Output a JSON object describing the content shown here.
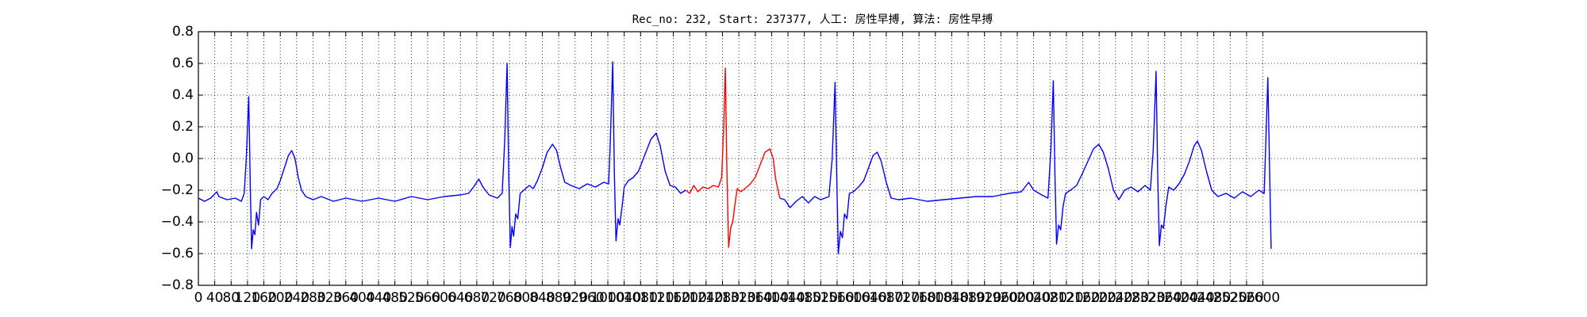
{
  "chart_data": {
    "type": "line",
    "title": "Rec_no: 232, Start: 237377, 人工: 房性早搏, 算法: 房性早搏",
    "xlim": [
      0,
      3000
    ],
    "xticks": [
      0,
      40,
      80,
      120,
      160,
      200,
      240,
      280,
      320,
      360,
      400,
      440,
      480,
      520,
      560,
      600,
      640,
      680,
      720,
      760,
      800,
      840,
      880,
      920,
      960,
      1000,
      1040,
      1080,
      1120,
      1160,
      1200,
      1240,
      1280,
      1320,
      1360,
      1400,
      1440,
      1480,
      1520,
      1560,
      1600,
      1640,
      1680,
      1720,
      1760,
      1800,
      1840,
      1880,
      1920,
      1960,
      2000,
      2040,
      2080,
      2120,
      2160,
      2200,
      2240,
      2280,
      2320,
      2360,
      2400,
      2440,
      2480,
      2520,
      2560,
      2600
    ],
    "ylim": [
      -0.8,
      0.8
    ],
    "yticks": [
      {
        "value": -0.8,
        "label": "−0.8"
      },
      {
        "value": -0.6,
        "label": "−0.6"
      },
      {
        "value": -0.4,
        "label": "−0.4"
      },
      {
        "value": -0.2,
        "label": "−0.2"
      },
      {
        "value": 0,
        "label": "0.0"
      },
      0.2,
      0.4,
      0.6,
      0.8
    ],
    "grid": true,
    "series": [
      {
        "color": "#0000ff",
        "x": [
          0,
          15,
          30,
          45,
          50,
          70,
          90,
          105,
          112,
          117,
          123,
          127,
          130,
          134,
          138,
          142,
          147,
          152,
          160,
          170,
          180,
          192,
          200,
          210,
          220,
          228,
          236,
          244,
          252,
          262,
          280,
          300,
          330,
          360,
          400,
          440,
          480,
          520,
          560,
          600,
          640,
          660,
          672,
          685,
          695,
          710,
          730,
          742,
          748,
          754,
          758,
          762,
          766,
          770,
          775,
          780,
          786,
          795,
          808,
          818,
          828,
          840,
          852,
          865,
          875,
          885,
          895,
          910,
          930,
          950,
          970,
          990,
          1002,
          1006,
          1012,
          1016,
          1020,
          1025,
          1029,
          1035,
          1040,
          1050,
          1062,
          1075,
          1090,
          1105,
          1118,
          1128,
          1140,
          1152,
          1165,
          1178,
          1190,
          1300,
          1420,
          1432,
          1445,
          1460,
          1475,
          1490,
          1505,
          1520,
          1540,
          1548,
          1555,
          1559,
          1563,
          1568,
          1573,
          1578,
          1584,
          1590,
          1600,
          1612,
          1625,
          1638,
          1648,
          1658,
          1668,
          1680,
          1692,
          1710,
          1740,
          1780,
          1820,
          1860,
          1900,
          1940,
          1980,
          2010,
          2028,
          2040,
          2060,
          2075,
          2082,
          2088,
          2092,
          2096,
          2101,
          2106,
          2112,
          2118,
          2130,
          2145,
          2158,
          2172,
          2186,
          2199,
          2210,
          2222,
          2235,
          2248,
          2262,
          2278,
          2295,
          2312,
          2325,
          2332,
          2339,
          2343,
          2347,
          2352,
          2357,
          2363,
          2370,
          2382,
          2395,
          2408,
          2420,
          2432,
          2440,
          2450,
          2462,
          2475,
          2490,
          2510,
          2530,
          2550,
          2570,
          2590,
          2603,
          2607,
          2612,
          2620
        ],
        "values": [
          -0.25,
          -0.27,
          -0.25,
          -0.21,
          -0.24,
          -0.26,
          -0.25,
          -0.27,
          -0.22,
          0.0,
          0.39,
          -0.2,
          -0.57,
          -0.45,
          -0.48,
          -0.34,
          -0.42,
          -0.26,
          -0.24,
          -0.26,
          -0.22,
          -0.19,
          -0.14,
          -0.06,
          0.02,
          0.05,
          0.0,
          -0.12,
          -0.2,
          -0.24,
          -0.26,
          -0.24,
          -0.27,
          -0.25,
          -0.27,
          -0.25,
          -0.27,
          -0.24,
          -0.26,
          -0.24,
          -0.23,
          -0.22,
          -0.18,
          -0.13,
          -0.18,
          -0.23,
          -0.25,
          -0.22,
          0.1,
          0.6,
          -0.1,
          -0.56,
          -0.43,
          -0.49,
          -0.35,
          -0.38,
          -0.22,
          -0.2,
          -0.17,
          -0.19,
          -0.14,
          -0.06,
          0.04,
          0.09,
          0.05,
          -0.06,
          -0.15,
          -0.17,
          -0.19,
          -0.16,
          -0.18,
          -0.15,
          -0.16,
          0.1,
          0.61,
          -0.1,
          -0.52,
          -0.38,
          -0.42,
          -0.3,
          -0.18,
          -0.14,
          -0.12,
          -0.08,
          0.02,
          0.12,
          0.16,
          0.08,
          -0.08,
          -0.17,
          -0.18,
          -0.22,
          -0.2,
          null,
          -0.25,
          -0.26,
          -0.31,
          -0.27,
          -0.24,
          -0.28,
          -0.24,
          -0.26,
          -0.24,
          0.0,
          0.48,
          -0.1,
          -0.6,
          -0.46,
          -0.5,
          -0.35,
          -0.38,
          -0.22,
          -0.21,
          -0.18,
          -0.14,
          -0.05,
          0.02,
          0.04,
          -0.02,
          -0.15,
          -0.25,
          -0.26,
          -0.25,
          -0.27,
          -0.26,
          -0.25,
          -0.24,
          -0.24,
          -0.22,
          -0.21,
          -0.15,
          -0.2,
          -0.23,
          -0.25,
          0.05,
          0.49,
          -0.1,
          -0.54,
          -0.42,
          -0.45,
          -0.3,
          -0.22,
          -0.2,
          -0.17,
          -0.1,
          -0.02,
          0.06,
          0.09,
          0.04,
          -0.06,
          -0.2,
          -0.26,
          -0.2,
          -0.18,
          -0.21,
          -0.17,
          -0.2,
          0.05,
          0.55,
          -0.1,
          -0.55,
          -0.42,
          -0.44,
          -0.3,
          -0.18,
          -0.2,
          -0.16,
          -0.1,
          -0.02,
          0.08,
          0.11,
          0.05,
          -0.08,
          -0.2,
          -0.24,
          -0.22,
          -0.25,
          -0.21,
          -0.24,
          -0.2,
          -0.22,
          0.1,
          0.51,
          -0.57
        ]
      },
      {
        "color": "#ff0000",
        "x": [
          1190,
          1200,
          1210,
          1220,
          1232,
          1245,
          1258,
          1270,
          1278,
          1283,
          1287,
          1291,
          1295,
          1300,
          1305,
          1310,
          1316,
          1325,
          1335,
          1348,
          1360,
          1372,
          1384,
          1396,
          1404,
          1410,
          1420
        ],
        "values": [
          -0.2,
          -0.22,
          -0.17,
          -0.21,
          -0.18,
          -0.19,
          -0.17,
          -0.18,
          -0.12,
          0.2,
          0.57,
          -0.1,
          -0.56,
          -0.44,
          -0.4,
          -0.3,
          -0.19,
          -0.21,
          -0.19,
          -0.16,
          -0.12,
          -0.04,
          0.04,
          0.06,
          0.0,
          -0.13,
          -0.25
        ]
      }
    ]
  }
}
